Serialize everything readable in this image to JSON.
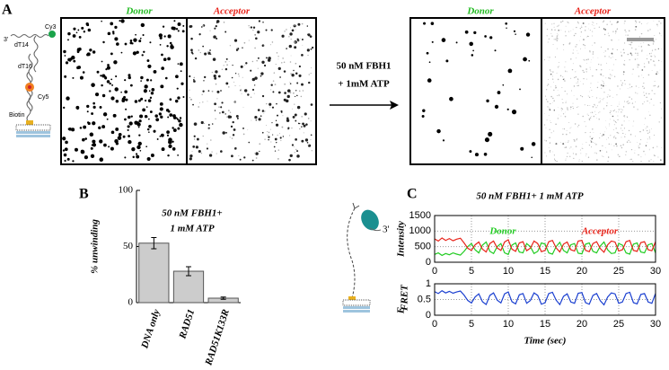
{
  "panels": {
    "a": "A",
    "b": "B",
    "c": "C"
  },
  "panel_a": {
    "construct": {
      "end": "3'",
      "dt14": "dT14",
      "cy3": "Cy3",
      "dt16": "dT16",
      "cy5": "Cy5",
      "biotin": "Biotin"
    },
    "before": {
      "donor": "Donor",
      "acceptor": "Acceptor"
    },
    "condition": [
      "50 nM FBH1",
      "+ 1mM ATP"
    ],
    "after": {
      "donor": "Donor",
      "acceptor": "Acceptor"
    }
  },
  "panel_c_construct": "3'",
  "chart_data": [
    {
      "type": "bar",
      "annotation": [
        "50 nM FBH1+",
        "1 mM ATP"
      ],
      "ylabel": "% unwinding",
      "categories": [
        "DNA only",
        "RAD51",
        "RAD51K133R"
      ],
      "values": [
        53,
        28,
        4
      ],
      "errors": [
        5,
        4,
        1
      ],
      "color": "#cccccc",
      "ylim": [
        0,
        100
      ],
      "yticks": [
        0,
        50,
        100
      ]
    },
    {
      "type": "line",
      "title": "50 nM FBH1+ 1 mM ATP",
      "ylabel": "Intensity",
      "x": [
        0,
        0.5,
        1,
        1.5,
        2,
        2.5,
        3,
        3.5,
        4,
        4.5,
        5,
        5.5,
        6,
        6.5,
        7,
        7.5,
        8,
        8.5,
        9,
        9.5,
        10,
        10.5,
        11,
        11.5,
        12,
        12.5,
        13,
        13.5,
        14,
        14.5,
        15,
        15.5,
        16,
        16.5,
        17,
        17.5,
        18,
        18.5,
        19,
        19.5,
        20,
        20.5,
        21,
        21.5,
        22,
        22.5,
        23,
        23.5,
        24,
        24.5,
        25,
        25.5,
        26,
        26.5,
        27,
        27.5,
        28,
        28.5,
        29,
        29.5,
        30
      ],
      "xlim": [
        0,
        30
      ],
      "xticks": [
        0,
        5,
        10,
        15,
        20,
        25,
        30
      ],
      "ylim": [
        0,
        1500
      ],
      "yticks": [
        0,
        500,
        1000,
        1500
      ],
      "grid": true,
      "series": [
        {
          "name": "Donor",
          "color": "#22cc22",
          "values": [
            250,
            300,
            220,
            280,
            240,
            300,
            260,
            230,
            350,
            500,
            600,
            400,
            300,
            550,
            650,
            350,
            280,
            500,
            600,
            300,
            250,
            550,
            620,
            330,
            300,
            600,
            500,
            280,
            350,
            620,
            580,
            300,
            260,
            500,
            640,
            380,
            300,
            560,
            600,
            290,
            270,
            580,
            620,
            350,
            300,
            520,
            650,
            400,
            280,
            300,
            600,
            550,
            300,
            260,
            580,
            620,
            330,
            300,
            560,
            600,
            300
          ]
        },
        {
          "name": "Acceptor",
          "color": "#e8231a",
          "values": [
            750,
            680,
            780,
            700,
            760,
            690,
            740,
            770,
            620,
            450,
            380,
            560,
            650,
            420,
            330,
            600,
            680,
            460,
            380,
            650,
            720,
            420,
            350,
            620,
            660,
            370,
            450,
            680,
            600,
            340,
            380,
            660,
            700,
            460,
            330,
            580,
            650,
            400,
            360,
            680,
            700,
            380,
            340,
            600,
            660,
            440,
            320,
            560,
            680,
            650,
            360,
            400,
            660,
            700,
            380,
            350,
            630,
            660,
            400,
            370,
            660
          ]
        }
      ]
    },
    {
      "type": "line",
      "ylabel": "E",
      "ylabel_sub": "FRET",
      "xlabel": "Time (sec)",
      "x": [
        0,
        0.5,
        1,
        1.5,
        2,
        2.5,
        3,
        3.5,
        4,
        4.5,
        5,
        5.5,
        6,
        6.5,
        7,
        7.5,
        8,
        8.5,
        9,
        9.5,
        10,
        10.5,
        11,
        11.5,
        12,
        12.5,
        13,
        13.5,
        14,
        14.5,
        15,
        15.5,
        16,
        16.5,
        17,
        17.5,
        18,
        18.5,
        19,
        19.5,
        20,
        20.5,
        21,
        21.5,
        22,
        22.5,
        23,
        23.5,
        24,
        24.5,
        25,
        25.5,
        26,
        26.5,
        27,
        27.5,
        28,
        28.5,
        29,
        29.5,
        30
      ],
      "xlim": [
        0,
        30
      ],
      "xticks": [
        0,
        5,
        10,
        15,
        20,
        25,
        30
      ],
      "ylim": [
        0,
        1
      ],
      "yticks": [
        0,
        0.5,
        1
      ],
      "grid": true,
      "series": [
        {
          "color": "#1a3fd0",
          "values": [
            0.75,
            0.69,
            0.78,
            0.71,
            0.76,
            0.7,
            0.74,
            0.77,
            0.64,
            0.47,
            0.39,
            0.58,
            0.68,
            0.43,
            0.34,
            0.63,
            0.71,
            0.48,
            0.39,
            0.68,
            0.74,
            0.43,
            0.36,
            0.65,
            0.69,
            0.38,
            0.47,
            0.71,
            0.63,
            0.35,
            0.4,
            0.69,
            0.73,
            0.48,
            0.34,
            0.6,
            0.68,
            0.42,
            0.38,
            0.7,
            0.72,
            0.4,
            0.35,
            0.63,
            0.69,
            0.46,
            0.33,
            0.58,
            0.71,
            0.68,
            0.38,
            0.42,
            0.69,
            0.73,
            0.4,
            0.36,
            0.66,
            0.69,
            0.42,
            0.38,
            0.69
          ]
        }
      ]
    }
  ]
}
